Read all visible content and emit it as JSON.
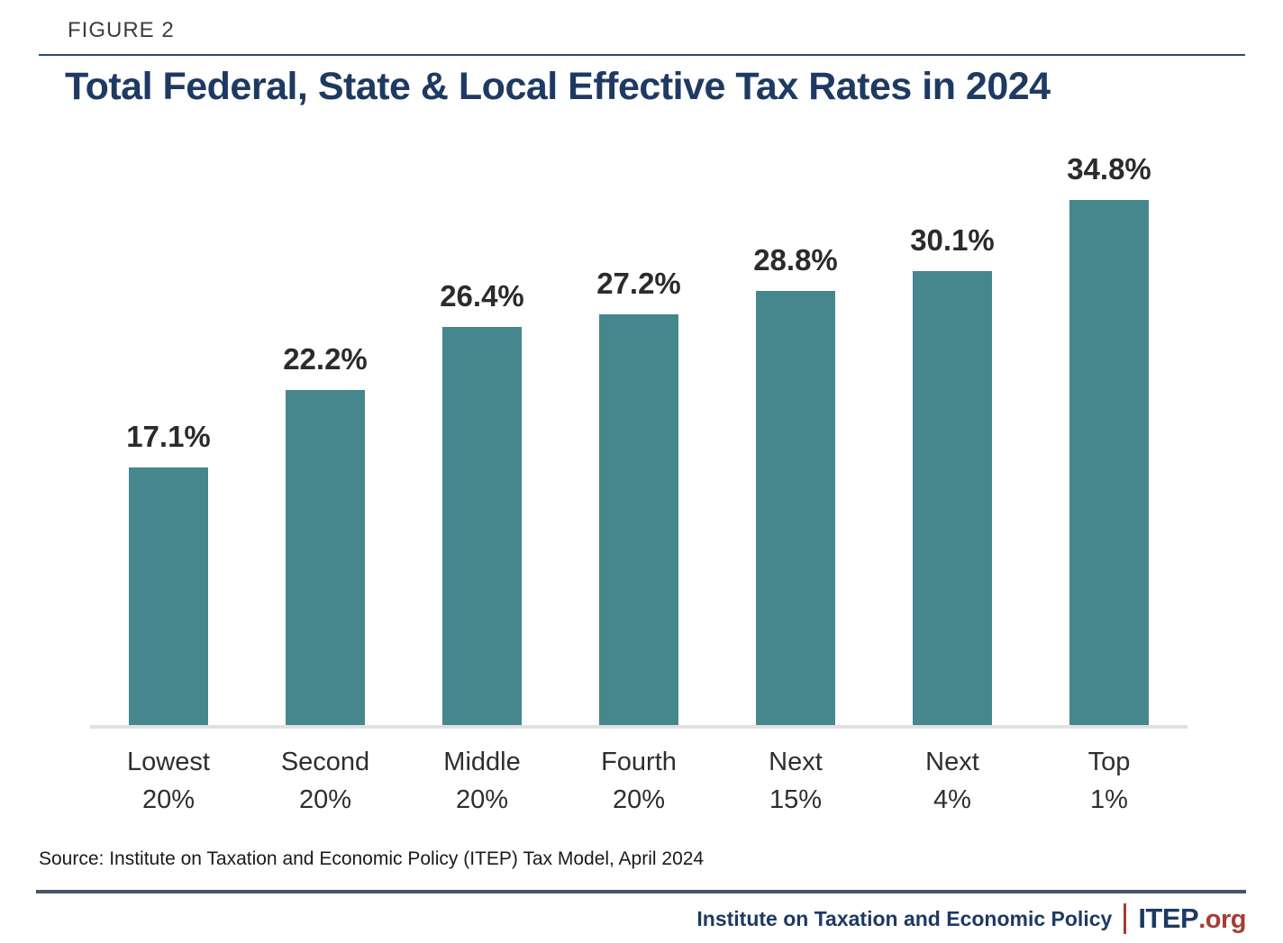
{
  "figure_label": "FIGURE 2",
  "title": "Total Federal, State & Local Effective Tax Rates in 2024",
  "source": "Source: Institute on Taxation and Economic Policy (ITEP) Tax Model, April 2024",
  "footer": {
    "org_name": "Institute on Taxation and Economic Policy",
    "logo_name": "ITEP",
    "logo_suffix": ".org"
  },
  "colors": {
    "bar": "#46878d",
    "navy": "#1e3a63",
    "red": "#a63d33",
    "value_label": "#2b2b2b",
    "baseline": "#e0e0e0",
    "footer_rule": "#46536a"
  },
  "chart_data": {
    "type": "bar",
    "title": "Total Federal, State & Local Effective Tax Rates in 2024",
    "categories": [
      "Lowest 20%",
      "Second 20%",
      "Middle 20%",
      "Fourth 20%",
      "Next 15%",
      "Next 4%",
      "Top 1%"
    ],
    "category_lines": [
      [
        "Lowest",
        "20%"
      ],
      [
        "Second",
        "20%"
      ],
      [
        "Middle",
        "20%"
      ],
      [
        "Fourth",
        "20%"
      ],
      [
        "Next",
        "15%"
      ],
      [
        "Next",
        "4%"
      ],
      [
        "Top",
        "1%"
      ]
    ],
    "values": [
      17.1,
      22.2,
      26.4,
      27.2,
      28.8,
      30.1,
      34.8
    ],
    "value_labels": [
      "17.1%",
      "22.2%",
      "26.4%",
      "27.2%",
      "28.8%",
      "30.1%",
      "34.8%"
    ],
    "xlabel": "",
    "ylabel": "",
    "ylim": [
      0,
      35
    ],
    "grid": false,
    "legend": false,
    "bar_color": "#46878d"
  }
}
